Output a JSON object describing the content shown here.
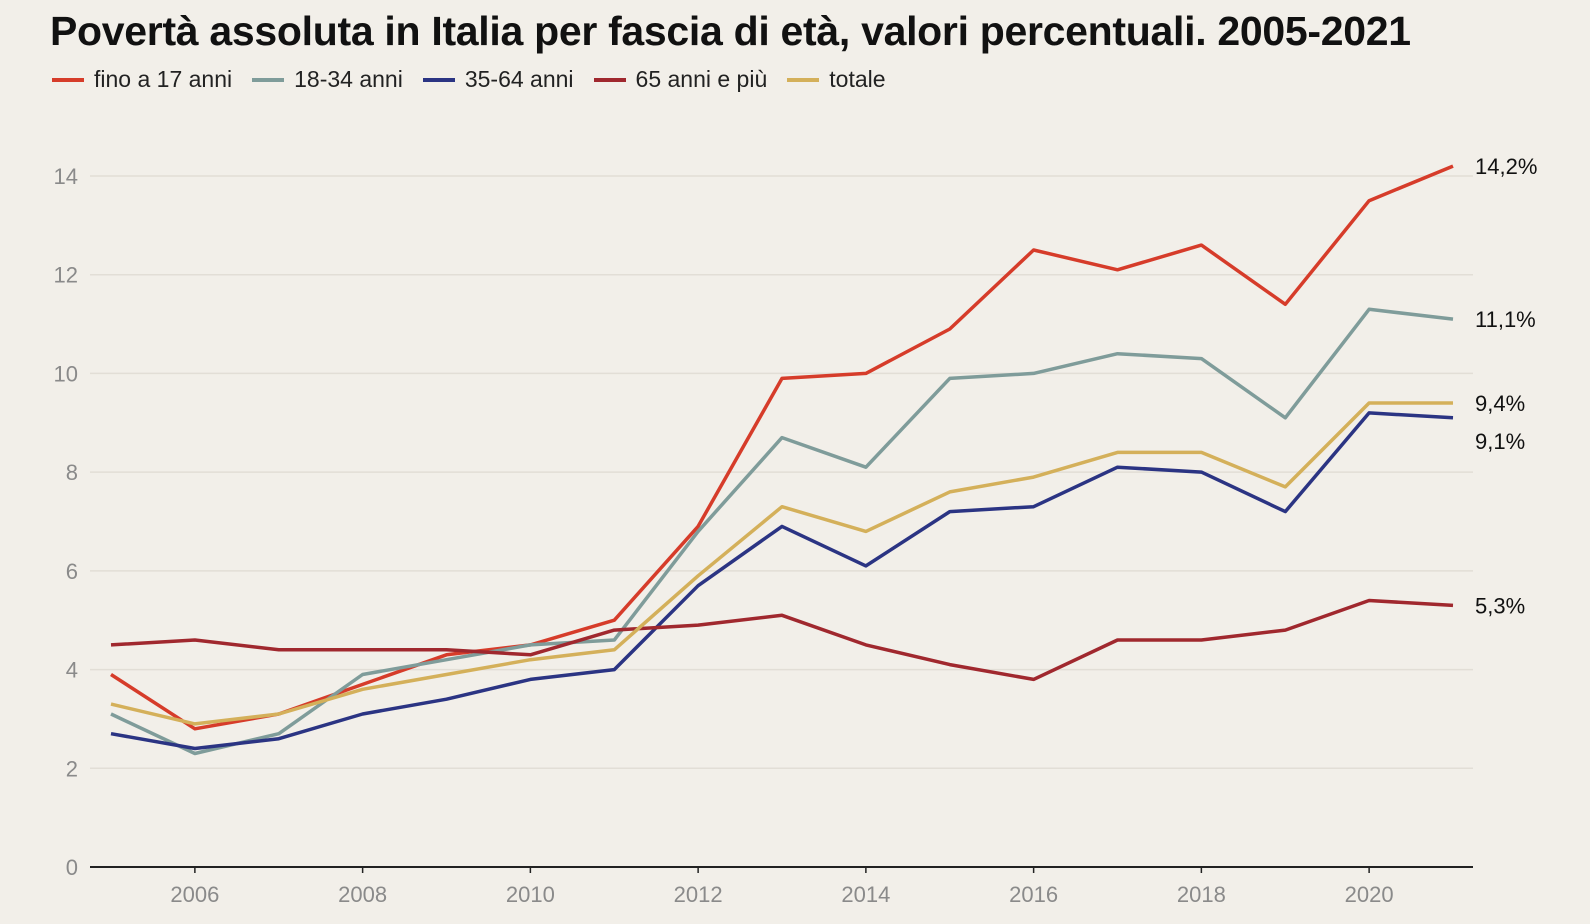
{
  "chart_data": {
    "type": "line",
    "title": "Povertà assoluta in Italia per fascia di età, valori percentuali. 2005-2021",
    "xlabel": "",
    "ylabel": "",
    "x": [
      2005,
      2006,
      2007,
      2008,
      2009,
      2010,
      2011,
      2012,
      2013,
      2014,
      2015,
      2016,
      2017,
      2018,
      2019,
      2020,
      2021
    ],
    "xticks": [
      "2006",
      "2008",
      "2010",
      "2012",
      "2014",
      "2016",
      "2018",
      "2020"
    ],
    "yticks": [
      "0",
      "2",
      "4",
      "6",
      "8",
      "10",
      "12",
      "14"
    ],
    "ylim": [
      0,
      14
    ],
    "grid": true,
    "legend_position": "top-left",
    "series": [
      {
        "name": "fino a 17 anni",
        "color": "#d63c2a",
        "end_label": "14,2%",
        "values": [
          3.9,
          2.8,
          3.1,
          3.7,
          4.3,
          4.5,
          5.0,
          6.9,
          9.9,
          10.0,
          10.9,
          12.5,
          12.1,
          12.6,
          11.4,
          13.5,
          14.2
        ]
      },
      {
        "name": "18-34 anni",
        "color": "#7f9c9a",
        "end_label": "11,1%",
        "values": [
          3.1,
          2.3,
          2.7,
          3.9,
          4.2,
          4.5,
          4.6,
          6.8,
          8.7,
          8.1,
          9.9,
          10.0,
          10.4,
          10.3,
          9.1,
          11.3,
          11.1
        ]
      },
      {
        "name": "35-64 anni",
        "color": "#2b3483",
        "end_label": "9,1%",
        "values": [
          2.7,
          2.4,
          2.6,
          3.1,
          3.4,
          3.8,
          4.0,
          5.7,
          6.9,
          6.1,
          7.2,
          7.3,
          8.1,
          8.0,
          7.2,
          9.2,
          9.1
        ]
      },
      {
        "name": "65 anni e più",
        "color": "#a0282e",
        "end_label": "5,3%",
        "values": [
          4.5,
          4.6,
          4.4,
          4.4,
          4.4,
          4.3,
          4.8,
          4.9,
          5.1,
          4.5,
          4.1,
          3.8,
          4.6,
          4.6,
          4.8,
          5.4,
          5.3
        ]
      },
      {
        "name": "totale",
        "color": "#d4b05a",
        "end_label": "9,4%",
        "values": [
          3.3,
          2.9,
          3.1,
          3.6,
          3.9,
          4.2,
          4.4,
          5.9,
          7.3,
          6.8,
          7.6,
          7.9,
          8.4,
          8.4,
          7.7,
          9.4,
          9.4
        ]
      }
    ]
  }
}
